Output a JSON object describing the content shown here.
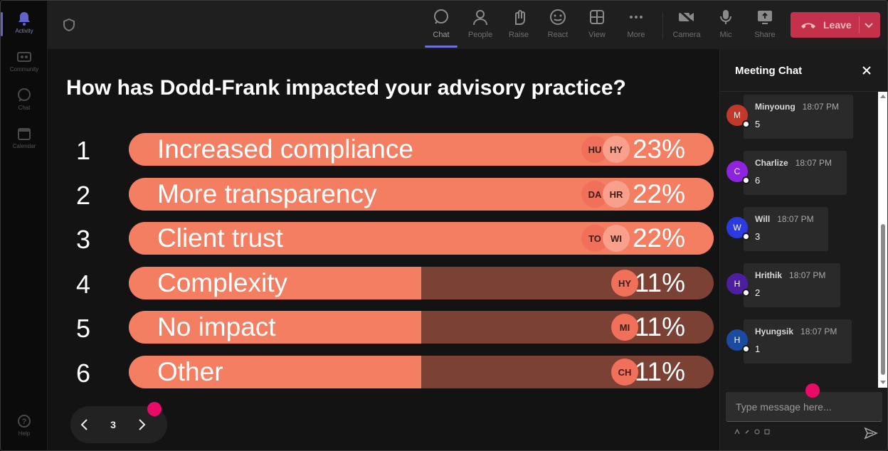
{
  "colors": {
    "accent": "#6b70d6",
    "leave": "#c4314b",
    "bar_fill": "#f47e62",
    "bar_track": "#7a4134",
    "pointer_dot": "#ea0a68"
  },
  "rail": {
    "items": [
      {
        "label": "Activity",
        "icon": "bell-icon",
        "active": true
      },
      {
        "label": "Community",
        "icon": "community-icon"
      },
      {
        "label": "Chat",
        "icon": "chat-icon"
      },
      {
        "label": "Calendar",
        "icon": "calendar-icon"
      }
    ],
    "help": {
      "label": "Help",
      "icon": "help-icon"
    }
  },
  "toolbar": {
    "tools": [
      {
        "label": "Chat",
        "icon": "chat-icon",
        "active": true
      },
      {
        "label": "People",
        "icon": "people-icon"
      },
      {
        "label": "Raise",
        "icon": "raise-hand-icon"
      },
      {
        "label": "React",
        "icon": "react-icon"
      },
      {
        "label": "View",
        "icon": "view-icon"
      },
      {
        "label": "More",
        "icon": "more-icon"
      },
      {
        "label": "Camera",
        "icon": "camera-off-icon"
      },
      {
        "label": "Mic",
        "icon": "mic-icon"
      },
      {
        "label": "Share",
        "icon": "share-icon"
      }
    ],
    "leave_label": "Leave"
  },
  "poll": {
    "question": "How has Dodd-Frank impacted your advisory practice?",
    "options": [
      {
        "num": "1",
        "label": "Increased compliance",
        "percent_text": "23%",
        "fill": 1.0,
        "avatars": [
          "HU",
          "HY"
        ]
      },
      {
        "num": "2",
        "label": "More transparency",
        "percent_text": "22%",
        "fill": 1.0,
        "avatars": [
          "DA",
          "HR"
        ]
      },
      {
        "num": "3",
        "label": "Client trust",
        "percent_text": "22%",
        "fill": 1.0,
        "avatars": [
          "TO",
          "WI"
        ]
      },
      {
        "num": "4",
        "label": "Complexity",
        "percent_text": "11%",
        "fill": 0.5,
        "avatars": [
          "HY"
        ]
      },
      {
        "num": "5",
        "label": "No impact",
        "percent_text": "11%",
        "fill": 0.5,
        "avatars": [
          "MI"
        ]
      },
      {
        "num": "6",
        "label": "Other",
        "percent_text": "11%",
        "fill": 0.5,
        "avatars": [
          "CH"
        ]
      }
    ],
    "page": "3"
  },
  "chat": {
    "title": "Meeting Chat",
    "messages": [
      {
        "initial": "M",
        "name": "Minyoung",
        "time": "18:07 PM",
        "text": "5",
        "color": "#c0392b"
      },
      {
        "initial": "C",
        "name": "Charlize",
        "time": "18:07 PM",
        "text": "6",
        "color": "#8e24e0"
      },
      {
        "initial": "W",
        "name": "Will",
        "time": "18:07 PM",
        "text": "3",
        "color": "#2c3be0"
      },
      {
        "initial": "H",
        "name": "Hrithik",
        "time": "18:07 PM",
        "text": "2",
        "color": "#4b1fa0"
      },
      {
        "initial": "H",
        "name": "Hyungsik",
        "time": "18:07 PM",
        "text": "1",
        "color": "#1a4ba0"
      }
    ],
    "composer_placeholder": "Type message here..."
  }
}
